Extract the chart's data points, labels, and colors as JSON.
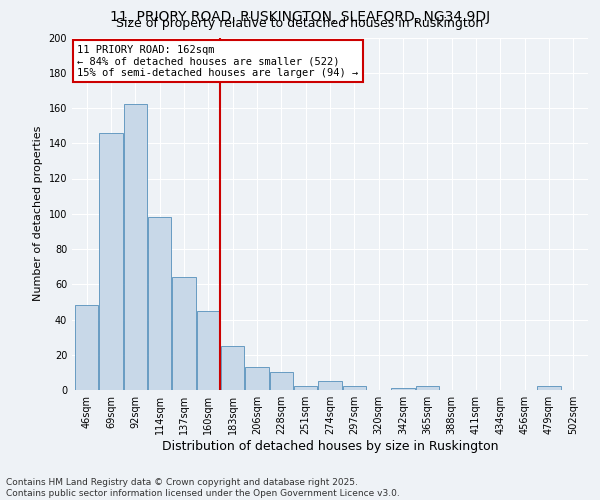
{
  "title1": "11, PRIORY ROAD, RUSKINGTON, SLEAFORD, NG34 9DJ",
  "title2": "Size of property relative to detached houses in Ruskington",
  "xlabel": "Distribution of detached houses by size in Ruskington",
  "ylabel": "Number of detached properties",
  "categories": [
    "46sqm",
    "69sqm",
    "92sqm",
    "114sqm",
    "137sqm",
    "160sqm",
    "183sqm",
    "206sqm",
    "228sqm",
    "251sqm",
    "274sqm",
    "297sqm",
    "320sqm",
    "342sqm",
    "365sqm",
    "388sqm",
    "411sqm",
    "434sqm",
    "456sqm",
    "479sqm",
    "502sqm"
  ],
  "values": [
    48,
    146,
    162,
    98,
    64,
    45,
    25,
    13,
    10,
    2,
    5,
    2,
    0,
    1,
    2,
    0,
    0,
    0,
    0,
    2,
    0
  ],
  "bar_color": "#c8d8e8",
  "bar_edge_color": "#5590bb",
  "vline_x": 5.5,
  "vline_label": "11 PRIORY ROAD: 162sqm",
  "annotation1": "← 84% of detached houses are smaller (522)",
  "annotation2": "15% of semi-detached houses are larger (94) →",
  "vline_color": "#cc0000",
  "ylim": [
    0,
    200
  ],
  "yticks": [
    0,
    20,
    40,
    60,
    80,
    100,
    120,
    140,
    160,
    180,
    200
  ],
  "footer1": "Contains HM Land Registry data © Crown copyright and database right 2025.",
  "footer2": "Contains public sector information licensed under the Open Government Licence v3.0.",
  "bg_color": "#eef2f6",
  "title_fontsize": 10,
  "subtitle_fontsize": 9,
  "xlabel_fontsize": 9,
  "ylabel_fontsize": 8,
  "tick_fontsize": 7,
  "annotation_fontsize": 7.5,
  "footer_fontsize": 6.5
}
